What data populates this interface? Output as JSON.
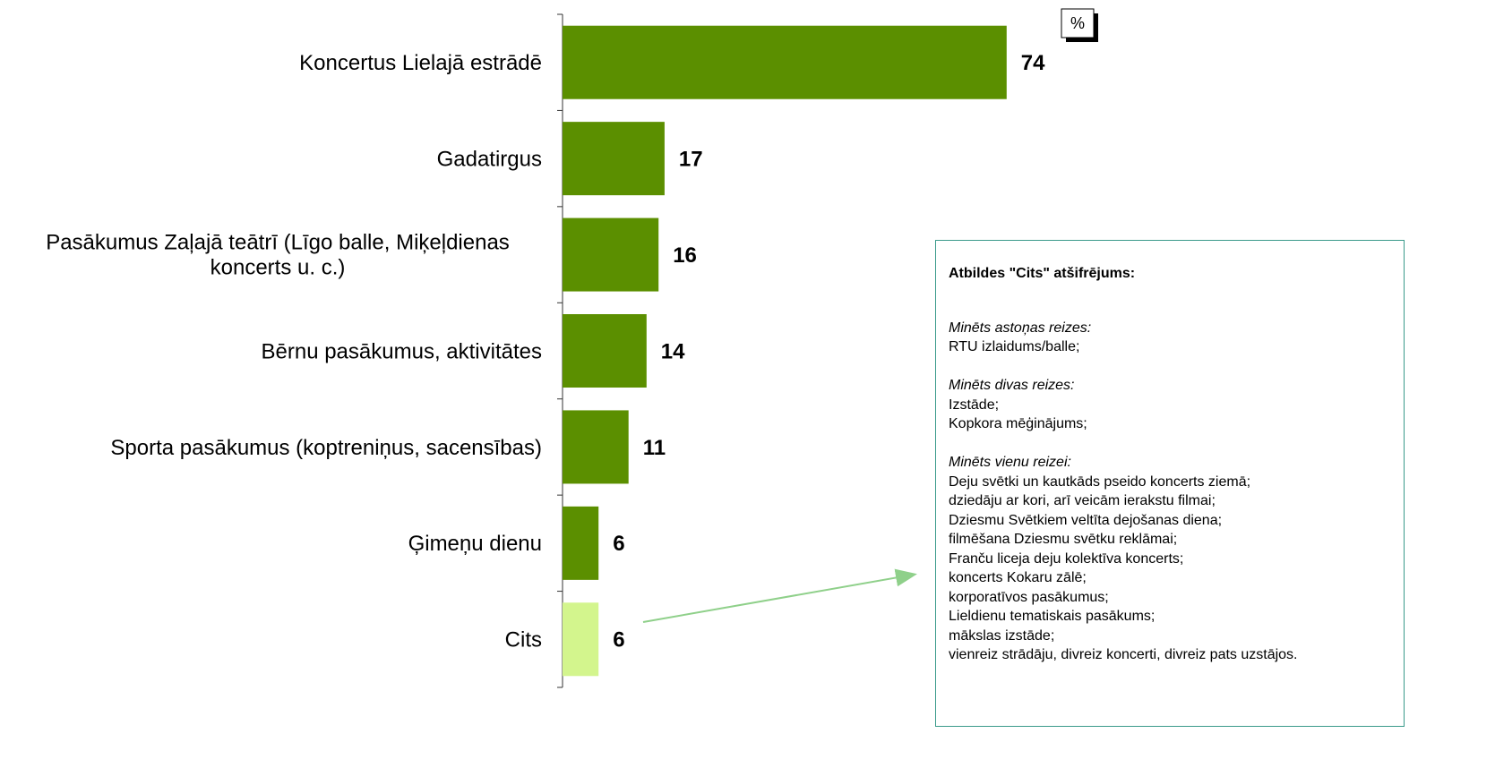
{
  "chart_data": {
    "type": "barh",
    "categories": [
      "Koncertus Lielajā estrādē",
      "Gadatirgus",
      "Pasākumus Zaļajā teātrī (Līgo balle, Miķeļdienas\nkoncerts u. c.)",
      "Bērnu pasākumus, aktivitātes",
      "Sporta pasākumus (koptreniņus, sacensības)",
      "Ģimeņu dienu",
      "Cits"
    ],
    "values": [
      74,
      17,
      16,
      14,
      11,
      6,
      6
    ],
    "colors": [
      "#5b8f00",
      "#5b8f00",
      "#5b8f00",
      "#5b8f00",
      "#5b8f00",
      "#5b8f00",
      "#d3f58d"
    ],
    "xlim": [
      0,
      100
    ],
    "unit_label": "%",
    "annotation": {
      "title": "Atbildes \"Cits\" atšifrējums:",
      "sections": [
        {
          "heading": "Minēts astoņas reizes:",
          "items": [
            "RTU izlaidums/balle;"
          ]
        },
        {
          "heading": "Minēts divas reizes:",
          "items": [
            "Izstāde;",
            "Kopkora mēģinājums;"
          ]
        },
        {
          "heading": "Minēts vienu reizei:",
          "items": [
            "Deju svētki un kautkāds pseido koncerts ziemā;",
            "dziedāju ar kori, arī veicām ierakstu filmai;",
            "Dziesmu Svētkiem veltīta dejošanas diena;",
            "filmēšana Dziesmu svētku reklāmai;",
            "Franču liceja deju kolektīva koncerts;",
            "koncerts Kokaru zālē;",
            "korporatīvos pasākumus;",
            "Lieldienu tematiskais pasākums;",
            "mākslas izstāde;",
            "vienreiz strādāju, divreiz koncerti, divreiz pats uzstājos."
          ]
        }
      ]
    }
  }
}
